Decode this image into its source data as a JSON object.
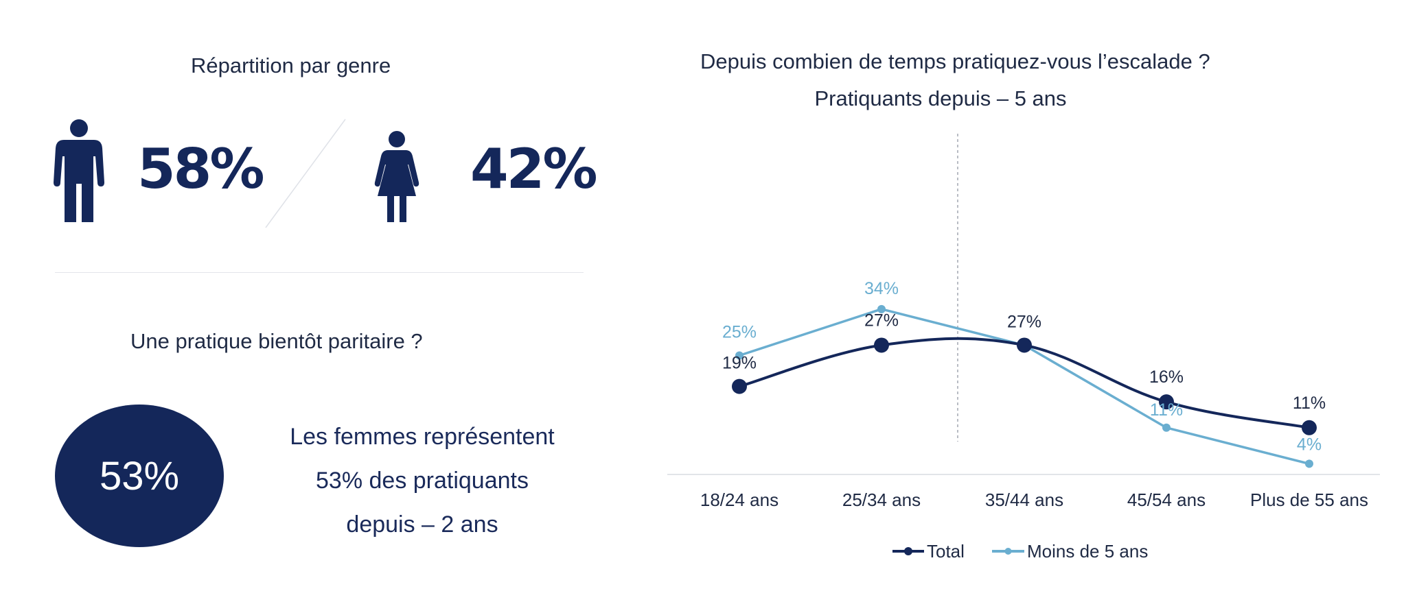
{
  "left_panel": {
    "gender_title": "Répartition par genre",
    "male_pct": "58%",
    "female_pct": "42%",
    "male_icon": "male-person-icon",
    "female_icon": "female-person-icon",
    "parity_title": "Une pratique bientôt paritaire ?",
    "circle_value": "53%",
    "women_text_lines": [
      "Les femmes représentent",
      "53% des pratiquants",
      "depuis – 2 ans"
    ]
  },
  "colors": {
    "navy": "#14275a",
    "light_blue": "#6aaed0"
  },
  "chart_data": {
    "type": "line",
    "title": "Depuis combien de temps pratiquez-vous l’escalade ?",
    "subtitle": "Pratiquants depuis – 5 ans",
    "categories": [
      "18/24 ans",
      "25/34 ans",
      "35/44 ans",
      "45/54 ans",
      "Plus de 55 ans"
    ],
    "series": [
      {
        "name": "Total",
        "values": [
          19,
          27,
          27,
          16,
          11
        ],
        "labels": [
          "19%",
          "27%",
          "27%",
          "16%",
          "11%"
        ],
        "color": "#14275a",
        "smooth": true
      },
      {
        "name": "Moins de 5 ans",
        "values": [
          25,
          34,
          27,
          11,
          4
        ],
        "labels": [
          "25%",
          "34%",
          "",
          "11%",
          "4%"
        ],
        "color": "#6aaed0",
        "smooth": false
      }
    ],
    "ylim": [
      0,
      40
    ],
    "grid": false,
    "legend_position": "bottom"
  }
}
